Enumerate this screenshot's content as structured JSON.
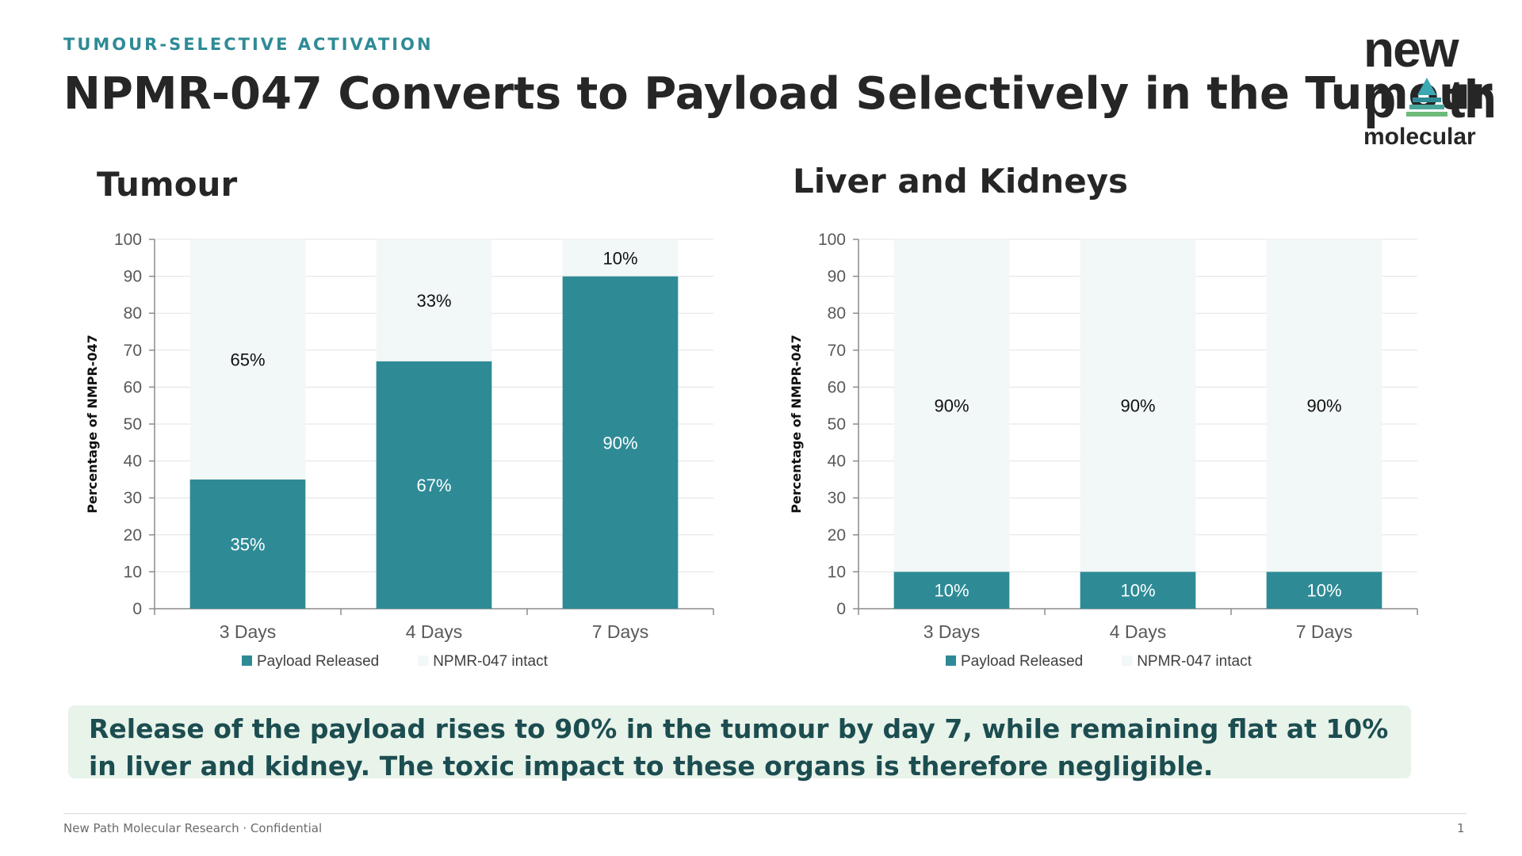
{
  "header": {
    "eyebrow": "TUMOUR-SELECTIVE ACTIVATION",
    "title": "NPMR-047 Converts to Payload Selectively in the Tumour"
  },
  "logo": {
    "line1": "new",
    "line2_left": "p",
    "line2_right": "th",
    "line3": "molecular"
  },
  "colors": {
    "payload": "#2e8b96",
    "intact": "#f2f7f7",
    "accent_text": "#2e8b96",
    "callout_bg": "#e8f3ea",
    "callout_text": "#1c4d50"
  },
  "chart_data": [
    {
      "type": "bar",
      "stacked": true,
      "title": "Tumour",
      "ylabel": "Percentage of NMPR-047",
      "categories": [
        "3 Days",
        "4 Days",
        "7 Days"
      ],
      "ylim": [
        0,
        100
      ],
      "yticks": [
        0,
        10,
        20,
        30,
        40,
        50,
        60,
        70,
        80,
        90,
        100
      ],
      "grid": true,
      "legend": "bottom",
      "series": [
        {
          "name": "Payload Released",
          "values": [
            35,
            67,
            90
          ],
          "labels": [
            "35%",
            "67%",
            "90%"
          ]
        },
        {
          "name": "NPMR-047 intact",
          "values": [
            65,
            33,
            10
          ],
          "labels": [
            "65%",
            "33%",
            "10%"
          ]
        }
      ]
    },
    {
      "type": "bar",
      "stacked": true,
      "title": "Liver and Kidneys",
      "ylabel": "Percentage of NMPR-047",
      "categories": [
        "3 Days",
        "4 Days",
        "7 Days"
      ],
      "ylim": [
        0,
        100
      ],
      "yticks": [
        0,
        10,
        20,
        30,
        40,
        50,
        60,
        70,
        80,
        90,
        100
      ],
      "grid": true,
      "legend": "bottom",
      "series": [
        {
          "name": "Payload Released",
          "values": [
            10,
            10,
            10
          ],
          "labels": [
            "10%",
            "10%",
            "10%"
          ]
        },
        {
          "name": "NPMR-047 intact",
          "values": [
            90,
            90,
            90
          ],
          "labels": [
            "90%",
            "90%",
            "90%"
          ]
        }
      ]
    }
  ],
  "callout": {
    "text": "Release of the payload rises to 90% in the tumour by day 7, while remaining flat at 10% in liver and kidney. The toxic impact to these organs is therefore negligible."
  },
  "footer": {
    "left": "New Path Molecular Research · Confidential",
    "page": "1"
  }
}
